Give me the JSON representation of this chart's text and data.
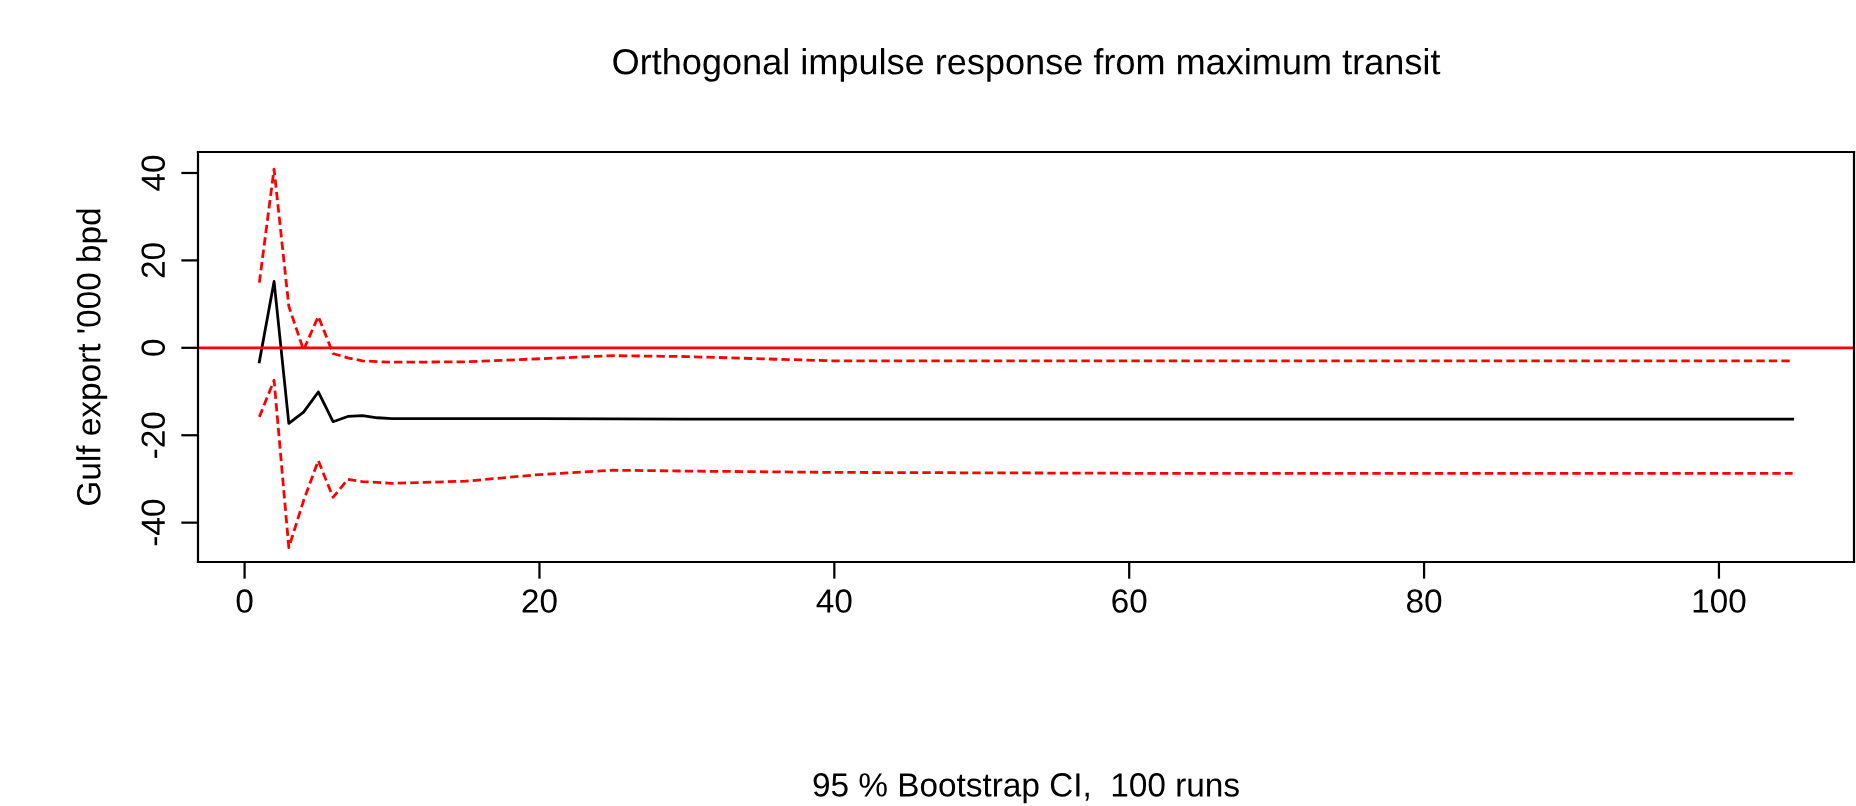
{
  "chart_data": {
    "type": "line",
    "title": "Orthogonal impulse response from maximum transit",
    "xlabel": "95 % Bootstrap CI,  100 runs",
    "ylabel": "Gulf export '000 bpd",
    "xlim": [
      -3.16,
      109.16
    ],
    "xticks": [
      0,
      20,
      40,
      60,
      80,
      100
    ],
    "ylim": [
      -49,
      44.8
    ],
    "yticks": [
      -40,
      -20,
      0,
      20,
      40
    ],
    "grid": false,
    "legend": false,
    "series": [
      {
        "color": "#000000",
        "line_style": "solid",
        "x": [
          1,
          2,
          3,
          4,
          5,
          6,
          7,
          8,
          9,
          10,
          11,
          15,
          20,
          30,
          40,
          60,
          80,
          105
        ],
        "values": [
          -3.2,
          15.2,
          -17.3,
          -14.7,
          -10.1,
          -16.9,
          -15.7,
          -15.5,
          -16,
          -16.2,
          -16.2,
          -16.2,
          -16.2,
          -16.3,
          -16.3,
          -16.3,
          -16.3,
          -16.3
        ]
      },
      {
        "color": "#ff0000",
        "line_style": "dashed",
        "x": [
          1,
          2,
          3,
          4,
          5,
          6,
          7,
          8,
          10,
          15,
          20,
          25,
          30,
          40,
          60,
          80,
          105
        ],
        "values": [
          14.9,
          40.9,
          9.5,
          -0.5,
          7.2,
          -1.3,
          -2.3,
          -3,
          -3.3,
          -3.2,
          -2.5,
          -1.8,
          -2,
          -3,
          -3,
          -3,
          -3
        ]
      },
      {
        "color": "#ff0000",
        "line_style": "dashed",
        "x": [
          1,
          2,
          3,
          4,
          5,
          6,
          7,
          8,
          10,
          15,
          20,
          25,
          30,
          40,
          60,
          80,
          105
        ],
        "values": [
          -15.8,
          -7.4,
          -45.7,
          -35,
          -25.8,
          -34.2,
          -30.1,
          -30.6,
          -31,
          -30.5,
          -29,
          -28,
          -28.2,
          -28.5,
          -28.7,
          -28.7,
          -28.7
        ]
      }
    ],
    "ref_lines": [
      {
        "axis": "y",
        "value": 0,
        "color": "#ff0000",
        "line_style": "solid"
      }
    ]
  }
}
